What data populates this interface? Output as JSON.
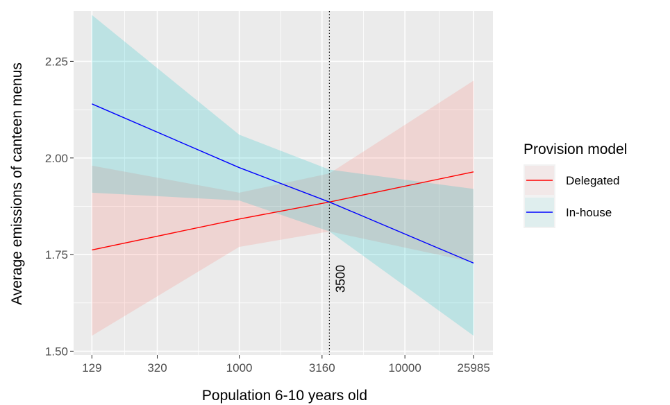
{
  "chart_data": {
    "type": "line",
    "xlabel": "Population 6-10 years old",
    "ylabel": "Average emissions of canteen menus",
    "x_scale": "log10",
    "xlim": [
      100,
      34000
    ],
    "ylim": [
      1.49,
      2.38
    ],
    "x_ticks": [
      129,
      320,
      1000,
      3160,
      10000,
      25985
    ],
    "x_tick_labels": [
      "129",
      "320",
      "1000",
      "3160",
      "10000",
      "25985"
    ],
    "y_ticks": [
      1.5,
      1.75,
      2.0,
      2.25
    ],
    "y_tick_labels": [
      "1.50",
      "1.75",
      "2.00",
      "2.25"
    ],
    "grid": true,
    "legend": {
      "title": "Provision model",
      "placement": "right",
      "entries": [
        "Delegated",
        "In-house"
      ]
    },
    "series": [
      {
        "name": "Delegated",
        "color": "#ff0000",
        "ribbon_color": "#f8766d",
        "x": [
          129,
          1000,
          3500,
          25985
        ],
        "y": [
          1.762,
          1.842,
          1.886,
          1.964
        ],
        "lower": [
          1.54,
          1.77,
          1.81,
          1.73
        ],
        "upper": [
          1.98,
          1.91,
          1.96,
          2.2
        ]
      },
      {
        "name": "In-house",
        "color": "#0000ff",
        "ribbon_color": "#00bfc4",
        "x": [
          129,
          1000,
          3500,
          25985
        ],
        "y": [
          2.14,
          1.975,
          1.886,
          1.728
        ],
        "lower": [
          1.91,
          1.89,
          1.81,
          1.54
        ],
        "upper": [
          2.37,
          2.06,
          1.97,
          1.92
        ]
      }
    ],
    "vline": {
      "x": 3500,
      "label": "3500",
      "style": "dotted"
    }
  }
}
